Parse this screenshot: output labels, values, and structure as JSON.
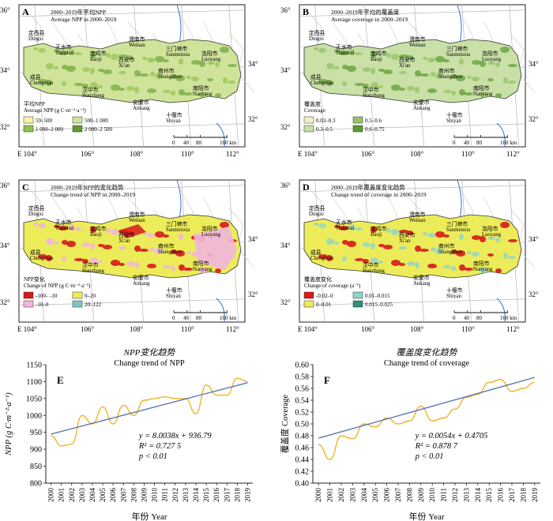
{
  "panels": {
    "A": {
      "letter": "A",
      "title_cn": "2000–2019年平均NPP",
      "title_en": "Average NPP in 2000–2019",
      "legend_title_cn": "平均NPP",
      "legend_title_en": "Average NPP (g C·m⁻²·a⁻¹)",
      "legend": [
        {
          "label": "59–500",
          "color": "#f7f4a8"
        },
        {
          "label": "500–1 000",
          "color": "#cfe39a"
        },
        {
          "label": "1 000–2 000",
          "color": "#93c04f"
        },
        {
          "label": "2 000–2 500",
          "color": "#5f9a2c"
        }
      ]
    },
    "B": {
      "letter": "B",
      "title_cn": "2000–2019年平均的覆盖度",
      "title_en": "Average coverage in 2000–2019",
      "legend_title_cn": "覆盖度",
      "legend_title_en": "Coverage",
      "legend": [
        {
          "label": "0.03–0.3",
          "color": "#eef3c6"
        },
        {
          "label": "0.5–0.6",
          "color": "#98c36a"
        },
        {
          "label": "0.3–0.5",
          "color": "#c9e0a6"
        },
        {
          "label": "0.6–0.75",
          "color": "#5a9a2f"
        }
      ]
    },
    "C": {
      "letter": "C",
      "title_cn": "2000–2019年NPP的变化趋势",
      "title_en": "Change trend of NPP in 2000–2019",
      "legend_title_cn": "NPP变化",
      "legend_title_en": "Change of NPP (g C·m⁻²·a⁻¹)",
      "legend": [
        {
          "label": "-100– -10",
          "color": "#d7191c"
        },
        {
          "label": "0–20",
          "color": "#ecec5a"
        },
        {
          "label": "-10–0",
          "color": "#f1b6da"
        },
        {
          "label": "20–122",
          "color": "#7fc8c0"
        }
      ]
    },
    "D": {
      "letter": "D",
      "title_cn": "2000–2019年覆盖度变化趋势",
      "title_en": "Change trend of coverage in 2000–2019",
      "legend_title_cn": "覆盖度变化",
      "legend_title_en": "Change of coverage (a⁻¹)",
      "legend": [
        {
          "label": "-0.02–0",
          "color": "#d7191c"
        },
        {
          "label": "0.01–0.015",
          "color": "#8fd3d0"
        },
        {
          "label": "0–0.01",
          "color": "#ecec5a"
        },
        {
          "label": "0.015–0.025",
          "color": "#2c8f7a"
        }
      ]
    }
  },
  "map": {
    "lon_labels": [
      "E 104°",
      "106°",
      "108°",
      "110°",
      "112°"
    ],
    "lat_labels_left": [
      "36°",
      "34°",
      "32°"
    ],
    "lat_labels_right": [
      "34°",
      "32°"
    ],
    "scale_ticks": [
      "0",
      "40",
      "80",
      "160 km"
    ],
    "cities": [
      {
        "cn": "定西县",
        "en": "Dingxi"
      },
      {
        "cn": "天水市",
        "en": "Tianshui"
      },
      {
        "cn": "宝鸡市",
        "en": "Baoji"
      },
      {
        "cn": "渭南市",
        "en": "Weinan"
      },
      {
        "cn": "西安市",
        "en": "Xi'an"
      },
      {
        "cn": "三门峡市",
        "en": "Sanmenxia"
      },
      {
        "cn": "洛阳市",
        "en": "Luoyang"
      },
      {
        "cn": "商州市",
        "en": "Shangzhou"
      },
      {
        "cn": "成县",
        "en": "Chengxian"
      },
      {
        "cn": "汉中市",
        "en": "Hanzhong"
      },
      {
        "cn": "安康市",
        "en": "Ankang"
      },
      {
        "cn": "南阳市",
        "en": "Nanyang"
      },
      {
        "cn": "十堰市",
        "en": "Shiyan"
      }
    ]
  },
  "charts": {
    "E": {
      "letter": "E",
      "title_cn": "NPP变化趋势",
      "title_en": "Change trend of NPP",
      "ylabel": "NPP (g C·m⁻²·a⁻¹)",
      "xlabel": "年份 Year",
      "eq1": "y = 8.0038x + 936.79",
      "eq2": "R² = 0.727 5",
      "eq3": "p < 0.01"
    },
    "F": {
      "letter": "F",
      "title_cn": "覆盖度变化趋势",
      "title_en": "Change trend of coverage",
      "ylabel": "覆盖度 Coverage",
      "xlabel": "年份 Year",
      "eq1": "y = 0.0054x + 0.4705",
      "eq2": "R² = 0.878 7",
      "eq3": "p < 0.01"
    }
  },
  "chart_data": [
    {
      "type": "line",
      "x": [
        "2000",
        "2001",
        "2002",
        "2003",
        "2004",
        "2005",
        "2006",
        "2007",
        "2008",
        "2009",
        "2010",
        "2011",
        "2012",
        "2013",
        "2014",
        "2015",
        "2016",
        "2017",
        "2018",
        "2019"
      ],
      "series": [
        {
          "values": [
            940,
            910,
            915,
            1000,
            975,
            1025,
            975,
            1030,
            1000,
            1045,
            1050,
            1055,
            1050,
            1050,
            1005,
            1090,
            1060,
            1060,
            1110,
            1100
          ]
        },
        {
          "values": [
            944.79,
            952.8,
            960.8,
            968.81,
            976.81,
            984.81,
            992.82,
            1000.82,
            1008.82,
            1016.83,
            1024.83,
            1032.83,
            1040.84,
            1048.84,
            1056.84,
            1064.85,
            1072.85,
            1080.86,
            1088.86,
            1096.87
          ]
        }
      ],
      "title": "Change trend of NPP",
      "xlabel": "年份 Year",
      "ylabel": "NPP (g C·m⁻²·a⁻¹)",
      "ylim": [
        800,
        1150
      ],
      "yticks": [
        800,
        850,
        900,
        950,
        1000,
        1050,
        1100,
        1150
      ],
      "colors": {
        "data": "#f0b429",
        "trend": "#5a78b5"
      }
    },
    {
      "type": "line",
      "x": [
        "2000",
        "2001",
        "2002",
        "2003",
        "2004",
        "2005",
        "2006",
        "2007",
        "2008",
        "2009",
        "2010",
        "2011",
        "2012",
        "2013",
        "2014",
        "2015",
        "2016",
        "2017",
        "2018",
        "2019"
      ],
      "series": [
        {
          "values": [
            0.465,
            0.44,
            0.48,
            0.475,
            0.5,
            0.495,
            0.51,
            0.5,
            0.505,
            0.53,
            0.505,
            0.51,
            0.525,
            0.545,
            0.55,
            0.57,
            0.575,
            0.555,
            0.56,
            0.57
          ]
        },
        {
          "values": [
            0.4759,
            0.4813,
            0.4867,
            0.4921,
            0.4975,
            0.5029,
            0.5083,
            0.5137,
            0.5191,
            0.5245,
            0.5299,
            0.5353,
            0.5407,
            0.5461,
            0.5515,
            0.5569,
            0.5623,
            0.5677,
            0.5731,
            0.5785
          ]
        }
      ],
      "title": "Change trend of coverage",
      "xlabel": "年份 Year",
      "ylabel": "覆盖度 Coverage",
      "ylim": [
        0.4,
        0.6
      ],
      "yticks": [
        0.4,
        0.42,
        0.44,
        0.46,
        0.48,
        0.5,
        0.52,
        0.54,
        0.56,
        0.58,
        0.6
      ],
      "colors": {
        "data": "#f0b429",
        "trend": "#5a78b5"
      }
    }
  ]
}
